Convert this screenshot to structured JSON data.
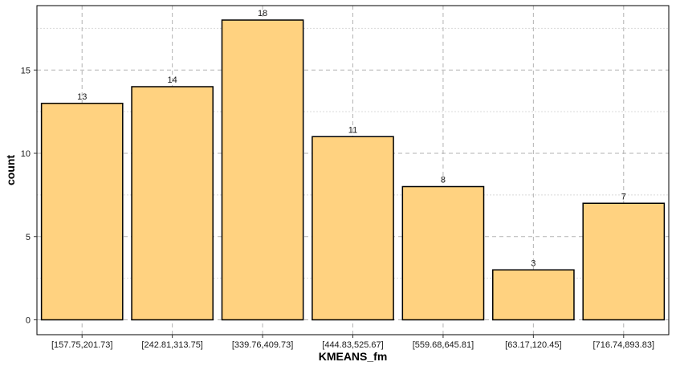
{
  "chart_data": {
    "type": "bar",
    "title": "",
    "xlabel": "KMEANS_fm",
    "ylabel": "count",
    "categories": [
      "[157.75,201.73]",
      "[242.81,313.75]",
      "[339.76,409.73]",
      "[444.83,525.67]",
      "[559.68,645.81]",
      "[63.17,120.45]",
      "[716.74,893.83]"
    ],
    "values": [
      13,
      14,
      18,
      11,
      8,
      3,
      7
    ],
    "ylim": [
      0,
      18.9
    ],
    "yticks": [
      0,
      5,
      10,
      15
    ],
    "grid": true,
    "legend": "none",
    "colors": {
      "bar_fill": "#FFD280",
      "bar_stroke": "#000000",
      "grid_major": "#b3b3b3",
      "grid_minor": "#d9d9d9"
    }
  }
}
